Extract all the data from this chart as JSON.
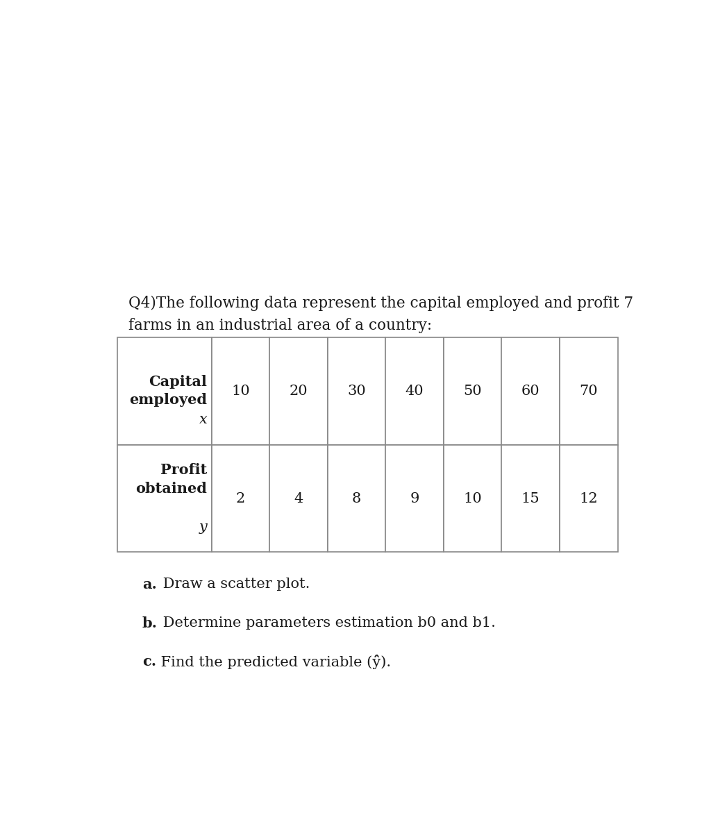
{
  "background_color": "#ffffff",
  "title_line1": "Q4)The following data represent the capital employed and profit 7",
  "title_line2": "farms in an industrial area of a country:",
  "row1_header": "Capital\nemployed\nx",
  "row1_values": [
    "10",
    "20",
    "30",
    "40",
    "50",
    "60",
    "70"
  ],
  "row2_header": "Profit\nobtained\ny",
  "row2_values": [
    "2",
    "4",
    "8",
    "9",
    "10",
    "15",
    "12"
  ],
  "q_a_bold": "a.",
  "q_a_rest": " Draw a scatter plot.",
  "q_b_bold": "b.",
  "q_b_rest": " Determine parameters estimation b0 and b1.",
  "q_c_bold": "c.",
  "q_c_rest": " Find the predicted variable (ŷ̂).",
  "text_color": "#1a1a1a",
  "border_color": "#888888",
  "font_size_title": 15.5,
  "font_size_table": 15,
  "font_size_questions": 15
}
